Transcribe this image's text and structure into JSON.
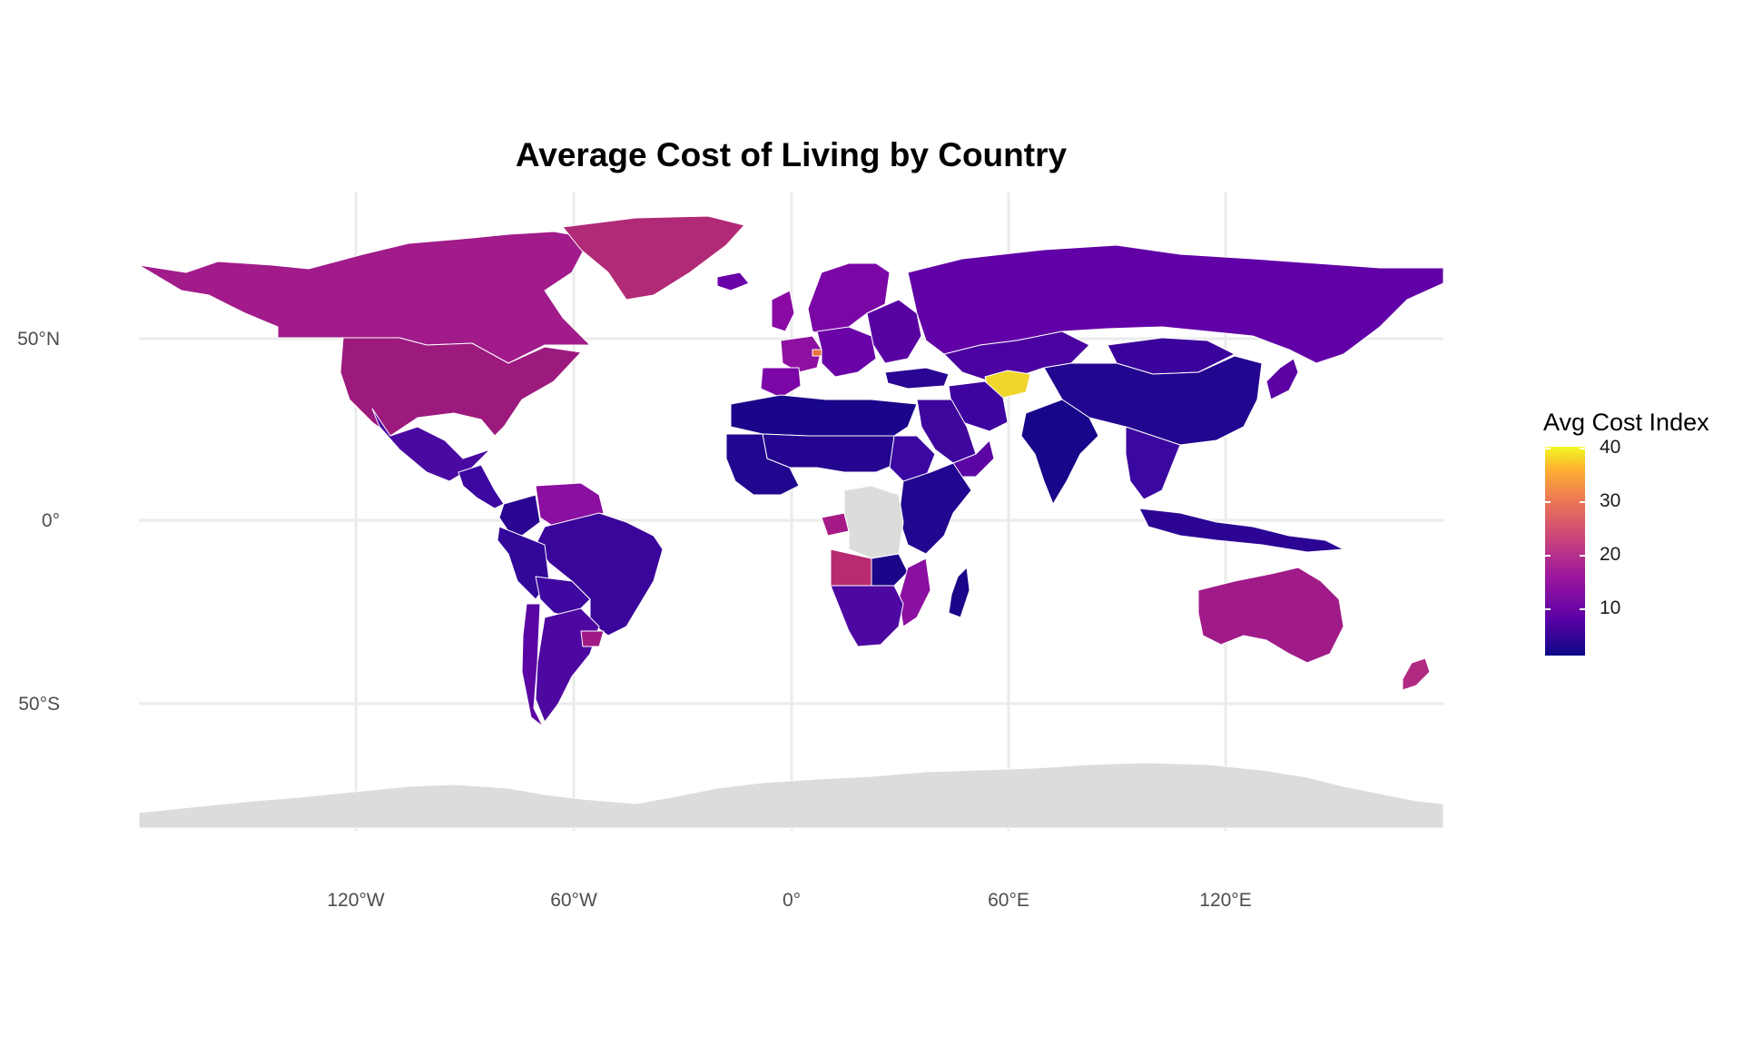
{
  "title": "Average Cost of Living by Country",
  "lat_labels": [
    "50°N",
    "0°",
    "50°S"
  ],
  "lon_labels": [
    "120°W",
    "60°W",
    "0°",
    "60°E",
    "120°E"
  ],
  "legend": {
    "title": "Avg Cost Index",
    "ticks": [
      "40",
      "30",
      "20",
      "10"
    ],
    "scale": "plasma",
    "min_color": "#0d0887",
    "max_color": "#f0f921",
    "missing_color": "#dcdcdc"
  },
  "colors": {
    "background": "#ffffff",
    "gridline": "#ebebeb",
    "border": "#ffffff"
  },
  "regions": [
    {
      "name": "Greenland",
      "color": "#b12a77"
    },
    {
      "name": "Canada",
      "color": "#a11b8a"
    },
    {
      "name": "United States",
      "color": "#9c1a7e"
    },
    {
      "name": "Mexico",
      "color": "#4a0aa2"
    },
    {
      "name": "Central America",
      "color": "#3c07a0"
    },
    {
      "name": "Venezuela",
      "color": "#8b0fa0"
    },
    {
      "name": "Colombia",
      "color": "#2a0693"
    },
    {
      "name": "Brazil",
      "color": "#3a059a"
    },
    {
      "name": "Peru",
      "color": "#33079a"
    },
    {
      "name": "Bolivia",
      "color": "#3d07a0"
    },
    {
      "name": "Argentina",
      "color": "#4e08a2"
    },
    {
      "name": "Chile",
      "color": "#5a06a4"
    },
    {
      "name": "Uruguay",
      "color": "#a01a86"
    },
    {
      "name": "Iceland",
      "color": "#6a00a8"
    },
    {
      "name": "United Kingdom",
      "color": "#8b0aa5"
    },
    {
      "name": "France",
      "color": "#8e10a0"
    },
    {
      "name": "Spain",
      "color": "#7b05a6"
    },
    {
      "name": "Scandinavia",
      "color": "#7a06a6"
    },
    {
      "name": "Switzerland",
      "color": "#e8713e"
    },
    {
      "name": "Central Europe",
      "color": "#6a02a8"
    },
    {
      "name": "Eastern Europe",
      "color": "#5802a2"
    },
    {
      "name": "Russia",
      "color": "#6200a7"
    },
    {
      "name": "Turkey",
      "color": "#2a0593"
    },
    {
      "name": "Turkmenistan",
      "color": "#f0d52a"
    },
    {
      "name": "Kazakhstan",
      "color": "#4a03a0"
    },
    {
      "name": "Iran",
      "color": "#3e04a0"
    },
    {
      "name": "Saudi Arabia",
      "color": "#3f069e"
    },
    {
      "name": "Arabian Peninsula",
      "color": "#5a05a4"
    },
    {
      "name": "China",
      "color": "#220690"
    },
    {
      "name": "Mongolia",
      "color": "#3a049c"
    },
    {
      "name": "India",
      "color": "#170689"
    },
    {
      "name": "Southeast Asia",
      "color": "#3a07a0"
    },
    {
      "name": "Indonesia",
      "color": "#2c0595"
    },
    {
      "name": "Japan",
      "color": "#5c02a5"
    },
    {
      "name": "Australia",
      "color": "#a01b88"
    },
    {
      "name": "New Zealand",
      "color": "#b02a82"
    },
    {
      "name": "Madagascar",
      "color": "#1b0689"
    },
    {
      "name": "North Africa",
      "color": "#1a068a"
    },
    {
      "name": "West Africa",
      "color": "#21078f"
    },
    {
      "name": "Sahel",
      "color": "#24058f"
    },
    {
      "name": "Sudan",
      "color": "#3a07a0"
    },
    {
      "name": "East Africa",
      "color": "#23068f"
    },
    {
      "name": "Gabon",
      "color": "#a51a86"
    },
    {
      "name": "Angola",
      "color": "#b82b73"
    },
    {
      "name": "DR Congo",
      "color": "#dcdcdc"
    },
    {
      "name": "Zambia",
      "color": "#1b0689"
    },
    {
      "name": "Southern Africa",
      "color": "#4e08a2"
    },
    {
      "name": "Mozambique",
      "color": "#8b0fa0"
    },
    {
      "name": "Antarctica",
      "color": "#dcdcdc"
    }
  ]
}
